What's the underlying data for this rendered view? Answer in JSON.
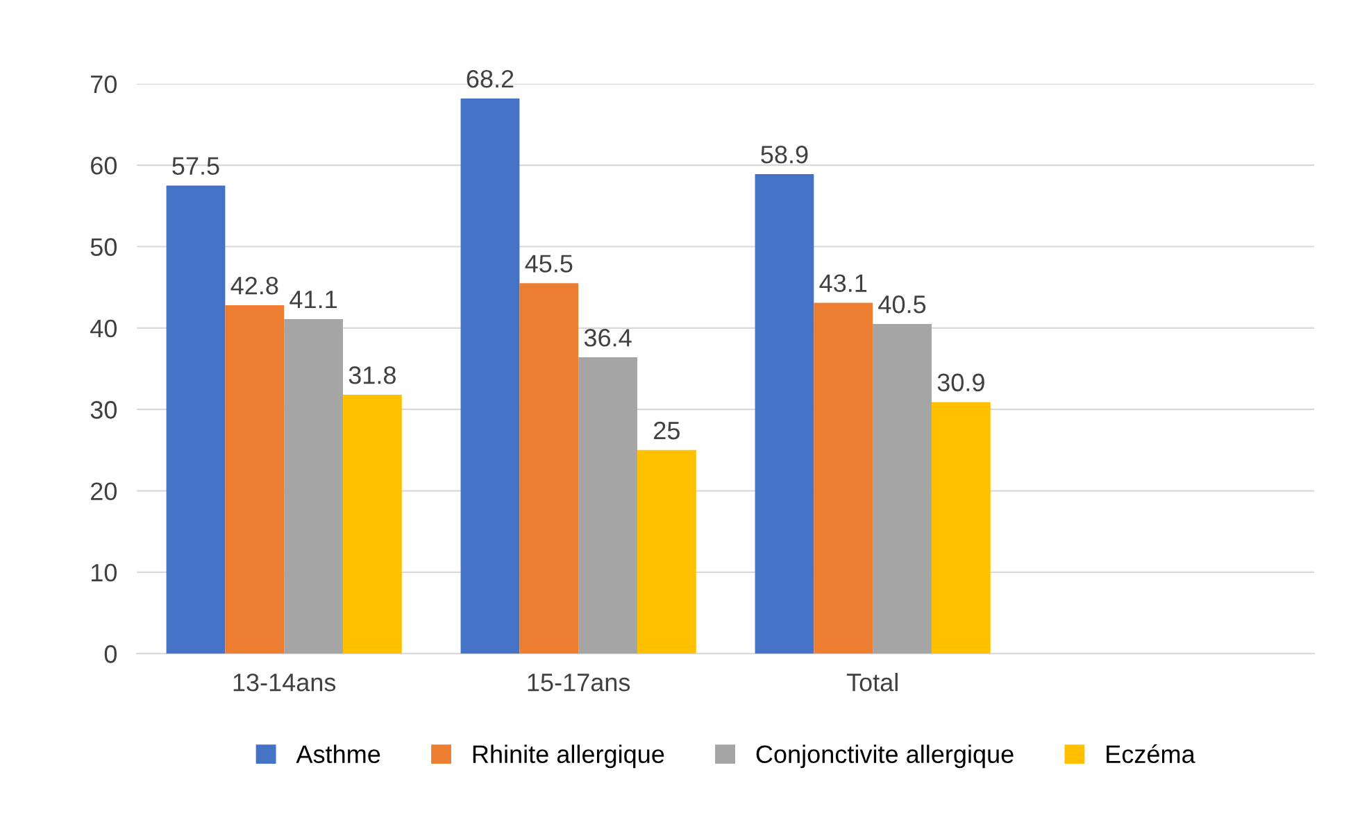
{
  "chart_data": {
    "type": "bar",
    "categories": [
      "13-14ans",
      "15-17ans",
      "Total",
      null
    ],
    "series": [
      {
        "name": "Asthme",
        "color": "#4472c4",
        "values": [
          57.5,
          68.2,
          58.9,
          null
        ]
      },
      {
        "name": "Rhinite allergique",
        "color": "#ed7d31",
        "values": [
          42.8,
          45.5,
          43.1,
          null
        ]
      },
      {
        "name": "Conjonctivite allergique",
        "color": "#a5a5a5",
        "values": [
          41.1,
          36.4,
          40.5,
          null
        ]
      },
      {
        "name": "Eczéma",
        "color": "#ffc000",
        "values": [
          31.8,
          25,
          30.9,
          null
        ]
      }
    ],
    "ylim": [
      0,
      70
    ],
    "yticks": [
      0,
      10,
      20,
      30,
      40,
      50,
      60,
      70
    ],
    "grid": "y",
    "legend": "bottom",
    "data_labels": true
  }
}
